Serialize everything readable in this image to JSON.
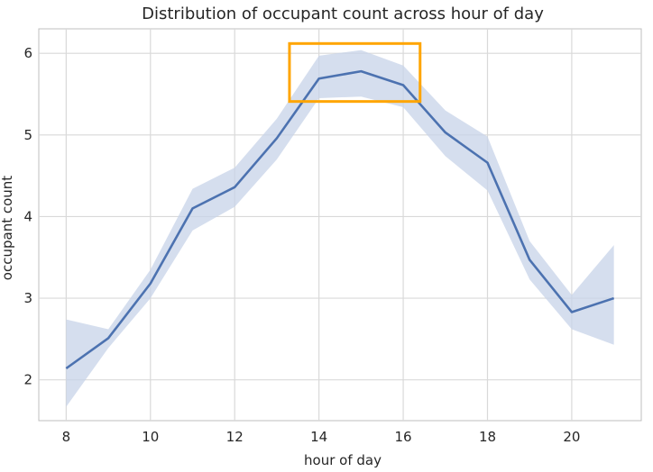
{
  "chart_data": {
    "type": "line",
    "title": "Distribution of occupant count across hour of day",
    "xlabel": "hour of day",
    "ylabel": "occupant count",
    "xlim": [
      7.35,
      21.65
    ],
    "ylim": [
      1.5,
      6.3
    ],
    "xticks": [
      8,
      10,
      12,
      14,
      16,
      18,
      20
    ],
    "yticks": [
      2,
      3,
      4,
      5,
      6
    ],
    "grid": true,
    "legend": "none",
    "series": [
      {
        "x": [
          8,
          9,
          10,
          11,
          12,
          13,
          14,
          15,
          16,
          17,
          18,
          19,
          20,
          21
        ],
        "y": [
          2.14,
          2.51,
          3.18,
          4.1,
          4.36,
          4.96,
          5.69,
          5.78,
          5.61,
          5.03,
          4.66,
          3.47,
          2.83,
          3.0
        ],
        "ci_low": [
          1.67,
          2.39,
          3.0,
          3.83,
          4.12,
          4.7,
          5.45,
          5.47,
          5.34,
          4.74,
          4.32,
          3.23,
          2.62,
          2.43
        ],
        "ci_high": [
          2.74,
          2.62,
          3.35,
          4.34,
          4.6,
          5.2,
          5.97,
          6.04,
          5.85,
          5.3,
          4.98,
          3.7,
          3.04,
          3.65
        ]
      }
    ],
    "highlight_box": {
      "x": [
        13.3,
        16.4
      ],
      "y": [
        5.41,
        6.12
      ],
      "color": "#FFA500"
    },
    "colors": {
      "line": "#4c72b0",
      "band": "#c7d3e8",
      "grid": "#d9d9d9",
      "axes_edge": "#bfbfbf"
    }
  }
}
